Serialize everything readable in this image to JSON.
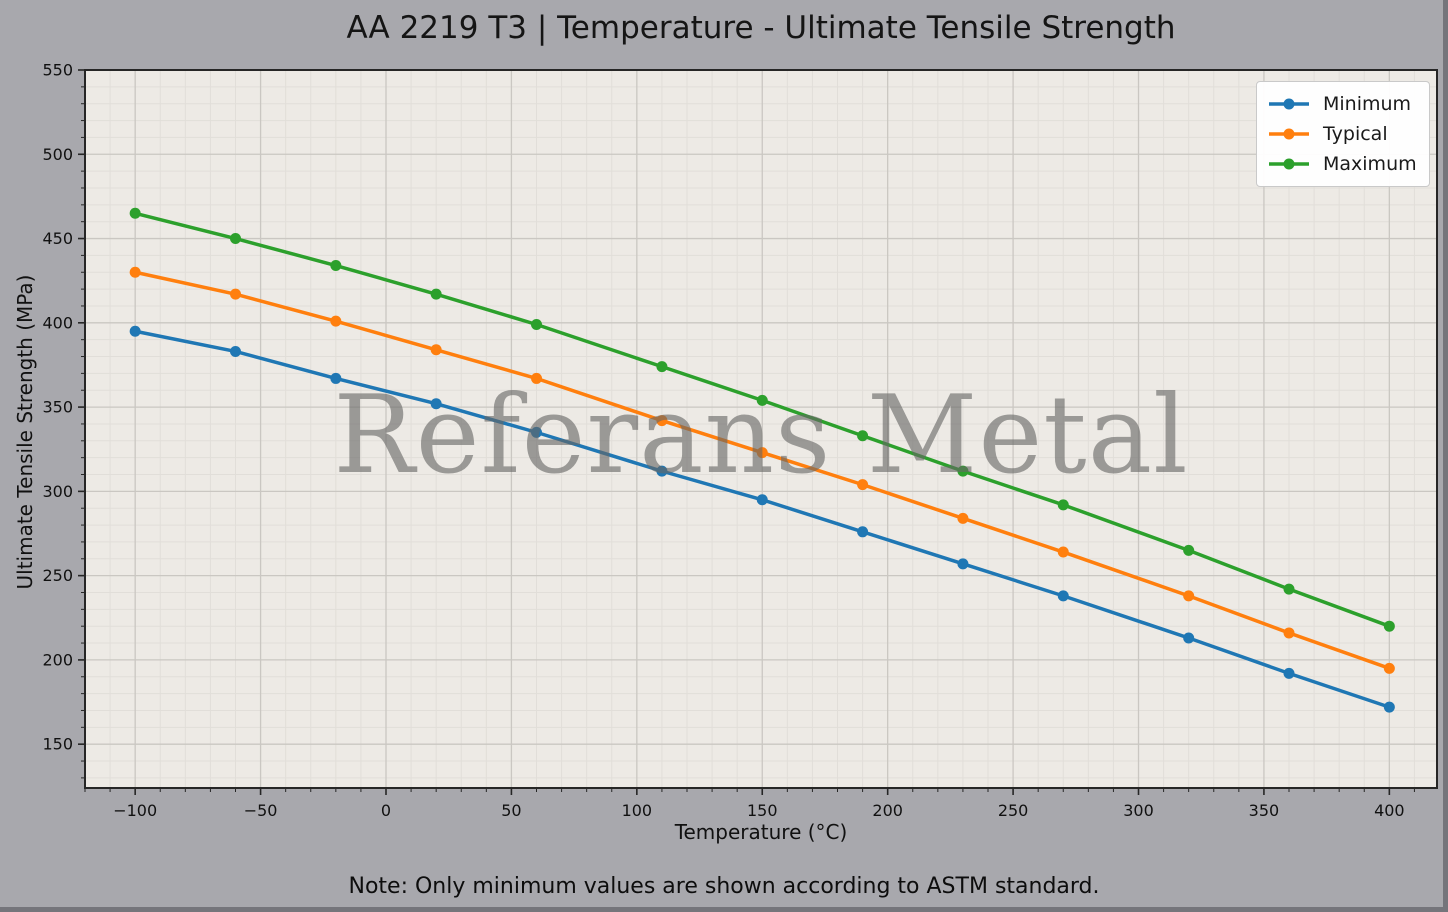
{
  "figure": {
    "title": "AA 2219 T3 | Temperature - Ultimate Tensile Strength",
    "note": "Note: Only minimum values are shown according to ASTM standard.",
    "watermark": "Referans Metal",
    "background_color": "#a8a8ad",
    "plot_background_color": "#edeae5"
  },
  "chart_data": {
    "type": "line",
    "title": "AA 2219 T3 | Temperature - Ultimate Tensile Strength",
    "xlabel": "Temperature (°C)",
    "ylabel": "Ultimate Tensile Strength (MPa)",
    "x": [
      -100,
      -60,
      -20,
      20,
      60,
      110,
      150,
      190,
      230,
      270,
      320,
      360,
      400
    ],
    "series": [
      {
        "name": "Minimum",
        "color": "#1f77b4",
        "values": [
          395,
          383,
          367,
          352,
          335,
          312,
          295,
          276,
          257,
          238,
          213,
          192,
          172
        ]
      },
      {
        "name": "Typical",
        "color": "#ff7f0e",
        "values": [
          430,
          417,
          401,
          384,
          367,
          342,
          323,
          304,
          284,
          264,
          238,
          216,
          195
        ]
      },
      {
        "name": "Maximum",
        "color": "#2ca02c",
        "values": [
          465,
          450,
          434,
          417,
          399,
          374,
          354,
          333,
          312,
          292,
          265,
          242,
          220
        ]
      }
    ],
    "xlim": [
      -120,
      419
    ],
    "ylim": [
      124,
      550
    ],
    "xticks": [
      -100,
      -50,
      0,
      50,
      100,
      150,
      200,
      250,
      300,
      350,
      400
    ],
    "xtick_labels": [
      "−100",
      "−50",
      "0",
      "50",
      "100",
      "150",
      "200",
      "250",
      "300",
      "350",
      "400"
    ],
    "yticks": [
      150,
      200,
      250,
      300,
      350,
      400,
      450,
      500,
      550
    ],
    "ytick_labels": [
      "150",
      "200",
      "250",
      "300",
      "350",
      "400",
      "450",
      "500",
      "550"
    ],
    "minor_tick_step_x": 10,
    "minor_tick_step_y": 10,
    "grid": "major+minor",
    "legend_position": "upper right",
    "annotations": {
      "watermark": "Referans Metal",
      "note": "Note: Only minimum values are shown according to ASTM standard."
    },
    "style": {
      "major_grid_color": "#cac7c2",
      "minor_grid_color": "#e1ded9",
      "spine_color": "#262626",
      "line_width": 3.5,
      "marker_radius": 5.5
    }
  }
}
